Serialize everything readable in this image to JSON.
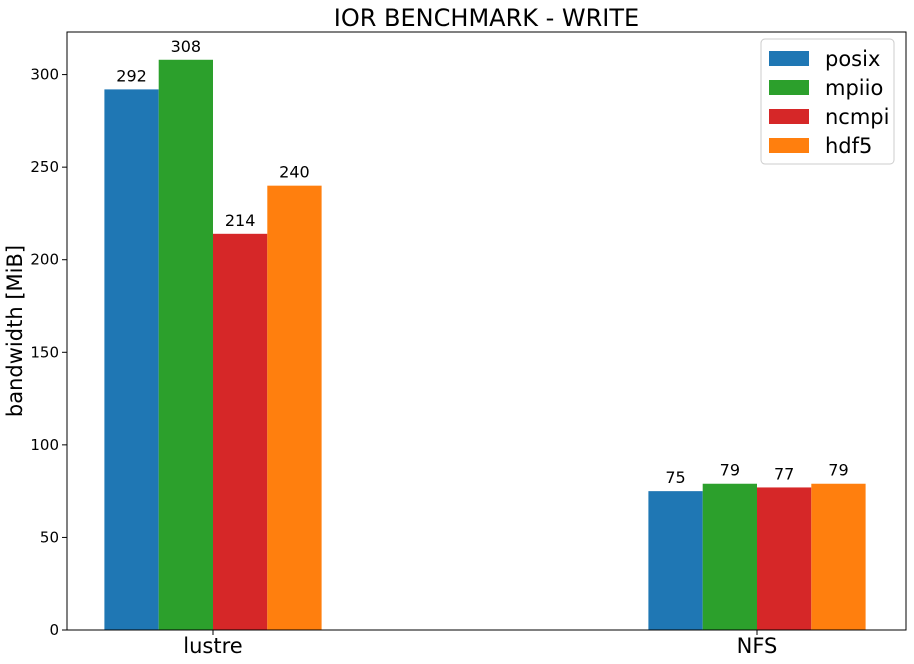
{
  "chart_data": {
    "type": "bar",
    "title": "IOR BENCHMARK - WRITE",
    "xlabel": "",
    "ylabel": "bandwidth [MiB]",
    "categories": [
      "lustre",
      "NFS"
    ],
    "series": [
      {
        "name": "posix",
        "values": [
          292,
          75
        ],
        "labels": [
          "292",
          "75"
        ],
        "color": "#1f77b4"
      },
      {
        "name": "mpiio",
        "values": [
          308,
          79
        ],
        "labels": [
          "308",
          "79"
        ],
        "color": "#2ca02c"
      },
      {
        "name": "ncmpi",
        "values": [
          214,
          77
        ],
        "labels": [
          "214",
          "77"
        ],
        "color": "#d62728"
      },
      {
        "name": "hdf5",
        "values": [
          240,
          79
        ],
        "labels": [
          "240",
          "79"
        ],
        "color": "#ff7f0e"
      }
    ],
    "ylim": [
      0,
      323
    ],
    "yticks": [
      0,
      50,
      100,
      150,
      200,
      250,
      300
    ],
    "ytick_labels": [
      "0",
      "50",
      "100",
      "150",
      "200",
      "250",
      "300"
    ],
    "grid": false,
    "legend_position": "top-right"
  }
}
